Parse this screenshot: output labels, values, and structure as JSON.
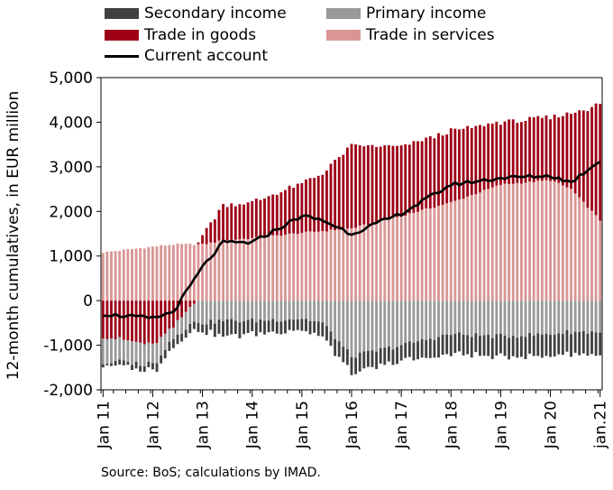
{
  "legend": {
    "secondary_income": "Secondary income",
    "primary_income": "Primary income",
    "trade_in_goods": "Trade in goods",
    "trade_in_services": "Trade in services",
    "current_account": "Current account"
  },
  "source": "Source: BoS; calculations by IMAD.",
  "colors": {
    "secondary_income": "#404040",
    "primary_income": "#999999",
    "trade_in_goods": "#9e0016",
    "trade_in_services": "#d99694",
    "current_account": "#000000"
  },
  "chart_data": {
    "type": "bar",
    "stacked": true,
    "ylabel": "12-month cumulatives, in EUR million",
    "ylim": [
      -2000,
      5000
    ],
    "yticks": [
      -2000,
      -1000,
      0,
      1000,
      2000,
      3000,
      4000,
      5000
    ],
    "ytick_labels": [
      "-2,000",
      "-1,000",
      "0",
      "1,000",
      "2,000",
      "3,000",
      "4,000",
      "5,000"
    ],
    "xtick_labels": [
      "Jan 11",
      "Jan 12",
      "Jan 13",
      "Jan 14",
      "Jan 15",
      "Jan 16",
      "Jan 17",
      "Jan 18",
      "Jan 19",
      "Jan 20",
      "jan.21"
    ],
    "grid": false,
    "legend_position": "top",
    "x_start": "2011-01",
    "x_end": "2021-01",
    "anchors": {
      "dates": [
        "2011-01",
        "2012-01",
        "2012-06",
        "2013-01",
        "2013-06",
        "2014-01",
        "2015-01",
        "2015-06",
        "2016-01",
        "2017-01",
        "2018-01",
        "2019-01",
        "2020-01",
        "2020-06",
        "2021-01"
      ],
      "trade_in_services": [
        1080,
        1210,
        1260,
        1260,
        1350,
        1400,
        1520,
        1560,
        1620,
        1900,
        2200,
        2600,
        2700,
        2500,
        1800
      ],
      "trade_in_goods": [
        -800,
        -1000,
        -600,
        200,
        800,
        800,
        1100,
        1300,
        1850,
        1550,
        1600,
        1400,
        1400,
        1700,
        2600
      ],
      "primary_income": [
        -550,
        -450,
        -250,
        -500,
        -450,
        -450,
        -400,
        -500,
        -1250,
        -1000,
        -750,
        -800,
        -750,
        -700,
        -700
      ],
      "secondary_income": [
        -50,
        -150,
        -200,
        -200,
        -350,
        -300,
        -250,
        -300,
        -400,
        -350,
        -450,
        -450,
        -500,
        -500,
        -500
      ],
      "current_account": [
        -300,
        -400,
        -250,
        750,
        1300,
        1300,
        1900,
        1800,
        1500,
        1950,
        2600,
        2750,
        2800,
        2650,
        3150
      ]
    }
  }
}
